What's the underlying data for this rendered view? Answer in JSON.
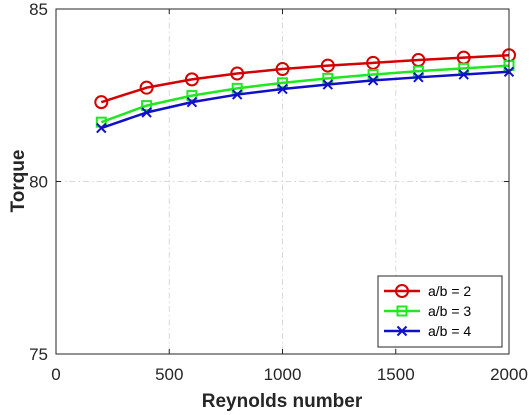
{
  "chart_data": {
    "type": "line",
    "title": "",
    "xlabel": "Reynolds number",
    "ylabel": "Torque",
    "xlim": [
      0,
      2000
    ],
    "ylim": [
      75,
      85
    ],
    "xticks": [
      0,
      500,
      1000,
      1500,
      2000
    ],
    "yticks": [
      75,
      80,
      85
    ],
    "xtick_labels": [
      "0",
      "500",
      "1000",
      "1500",
      "2000"
    ],
    "ytick_labels": [
      "75",
      "80",
      "85"
    ],
    "grid": true,
    "legend_position": "bottom-right",
    "x": [
      200,
      400,
      600,
      800,
      1000,
      1200,
      1400,
      1600,
      1800,
      2000
    ],
    "series": [
      {
        "name": "a/b = 2",
        "color": "#d40000",
        "marker": "circle",
        "values": [
          82.3,
          82.72,
          82.96,
          83.13,
          83.26,
          83.36,
          83.44,
          83.52,
          83.59,
          83.66
        ]
      },
      {
        "name": "a/b = 3",
        "color": "#22e622",
        "marker": "square",
        "values": [
          81.72,
          82.2,
          82.49,
          82.7,
          82.86,
          82.99,
          83.1,
          83.2,
          83.28,
          83.36
        ]
      },
      {
        "name": "a/b = 4",
        "color": "#1010c8",
        "marker": "x",
        "values": [
          81.55,
          82.0,
          82.3,
          82.52,
          82.68,
          82.81,
          82.93,
          83.02,
          83.1,
          83.18
        ]
      }
    ]
  }
}
